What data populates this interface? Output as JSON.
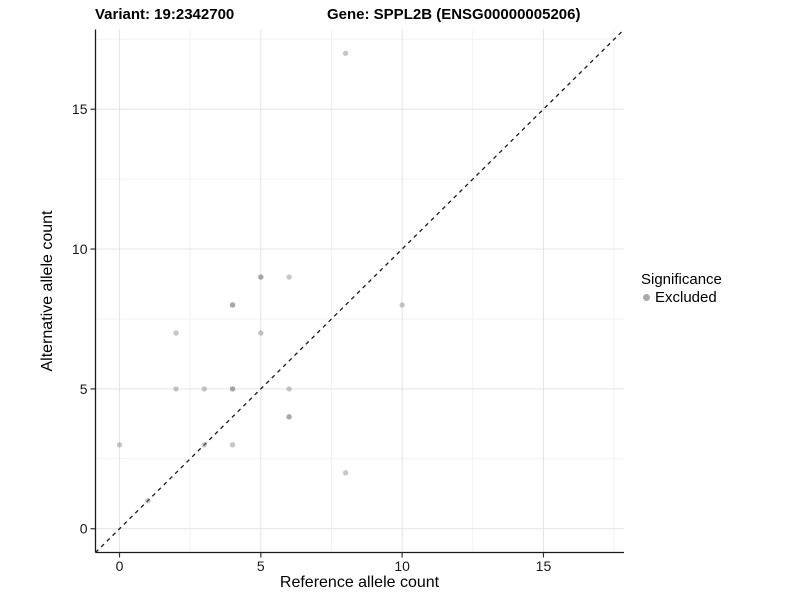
{
  "header": {
    "left_title": "Variant: 19:2342700",
    "right_title": "Gene: SPPL2B (ENSG00000005206)"
  },
  "chart_data": {
    "type": "scatter",
    "xlabel": "Reference allele count",
    "ylabel": "Alternative allele count",
    "xlim": [
      -0.85,
      17.85
    ],
    "ylim": [
      -0.85,
      17.85
    ],
    "x_ticks": [
      0,
      5,
      10,
      15
    ],
    "y_ticks": [
      0,
      5,
      10,
      15
    ],
    "minor_ticks": [
      2.5,
      7.5,
      12.5,
      17.5
    ],
    "grid": "major+minor on white background",
    "colors": {
      "major_grid": "#e4e4e4",
      "minor_grid": "#f2f2f2",
      "axis_line": "#1a1a1a",
      "tick_label": "#1a1a1a",
      "point_fill": "#808080",
      "identity_line": "#1a1a1a"
    },
    "point_alpha": 0.45,
    "identity_line": {
      "style": "dashed",
      "slope": 1,
      "intercept": 0,
      "from": [
        -0.85,
        -0.85
      ],
      "to": [
        17.85,
        17.85
      ]
    },
    "points": [
      {
        "x": 0,
        "y": 3,
        "n": 1
      },
      {
        "x": 1,
        "y": 1,
        "n": 1
      },
      {
        "x": 2,
        "y": 5,
        "n": 1
      },
      {
        "x": 2,
        "y": 7,
        "n": 1
      },
      {
        "x": 3,
        "y": 3,
        "n": 1
      },
      {
        "x": 3,
        "y": 5,
        "n": 1
      },
      {
        "x": 4,
        "y": 3,
        "n": 1
      },
      {
        "x": 4,
        "y": 5,
        "n": 2
      },
      {
        "x": 4,
        "y": 8,
        "n": 2
      },
      {
        "x": 5,
        "y": 7,
        "n": 1
      },
      {
        "x": 5,
        "y": 9,
        "n": 2
      },
      {
        "x": 6,
        "y": 4,
        "n": 2
      },
      {
        "x": 6,
        "y": 5,
        "n": 1
      },
      {
        "x": 6,
        "y": 9,
        "n": 1
      },
      {
        "x": 8,
        "y": 2,
        "n": 1
      },
      {
        "x": 8,
        "y": 17,
        "n": 1
      },
      {
        "x": 10,
        "y": 8,
        "n": 1
      }
    ],
    "legend": {
      "position": "right",
      "title": "Significance",
      "items": [
        {
          "label": "Excluded",
          "color": "#a9a9a9"
        }
      ]
    }
  }
}
